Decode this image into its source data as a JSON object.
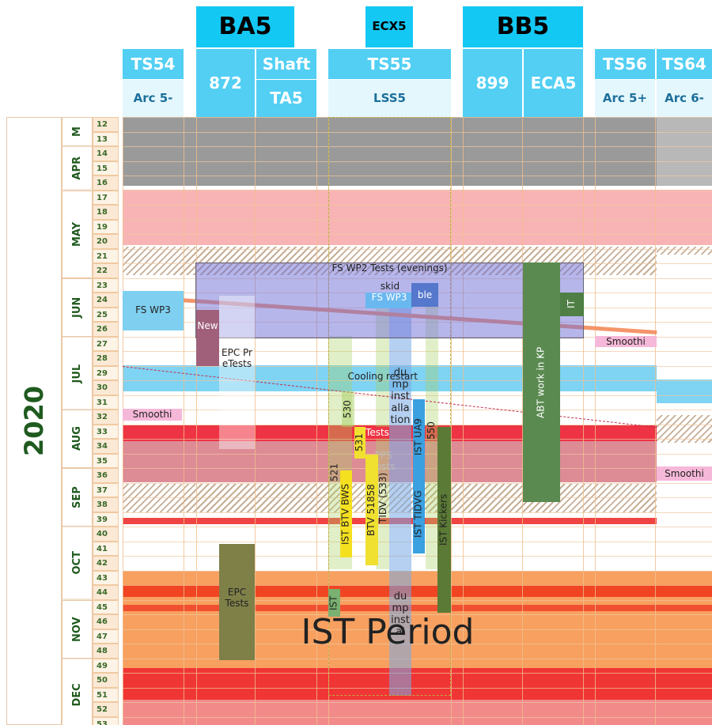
{
  "header": {
    "groups": [
      "BA5",
      "ECX5",
      "BB5"
    ],
    "columns": [
      "TS54",
      "872",
      "Shaft",
      "TS55",
      "899",
      "ECA5",
      "TS56",
      "TS64"
    ],
    "subcolumns": [
      "Arc 5-",
      "TA5",
      "LSS5",
      "Arc 5+",
      "Arc 6-"
    ]
  },
  "calendar": {
    "year": "2020",
    "months": [
      "M",
      "APR",
      "MAY",
      "JUN",
      "JUL",
      "AUG",
      "SEP",
      "OCT",
      "NOV",
      "DEC"
    ],
    "weeks": [
      12,
      13,
      14,
      15,
      16,
      17,
      18,
      19,
      20,
      21,
      22,
      23,
      24,
      25,
      26,
      27,
      28,
      29,
      30,
      31,
      32,
      33,
      34,
      35,
      36,
      37,
      38,
      39,
      40,
      41,
      42,
      43,
      44,
      45,
      46,
      47,
      48,
      49,
      50,
      51,
      52,
      53
    ]
  },
  "activities": [
    "FS WP2 Tests (evenings)",
    "FS WP3",
    "New",
    "EPC PreTests",
    "skid",
    "FS WP3",
    "ble",
    "IT",
    "ABT work in KP",
    "Smoothi",
    "Smoothi",
    "Smoothi",
    "Cooling",
    "restart",
    "530",
    "531",
    "Tests",
    "PPS Tests",
    "521",
    "IST BTV BWS",
    "BTV 51858",
    "TIDV (533)",
    "dump installation",
    "dump instal",
    "IST UA9",
    "550",
    "IST TIDVG",
    "IST Kickers",
    "IST",
    "EPC Tests",
    "IST Period"
  ]
}
